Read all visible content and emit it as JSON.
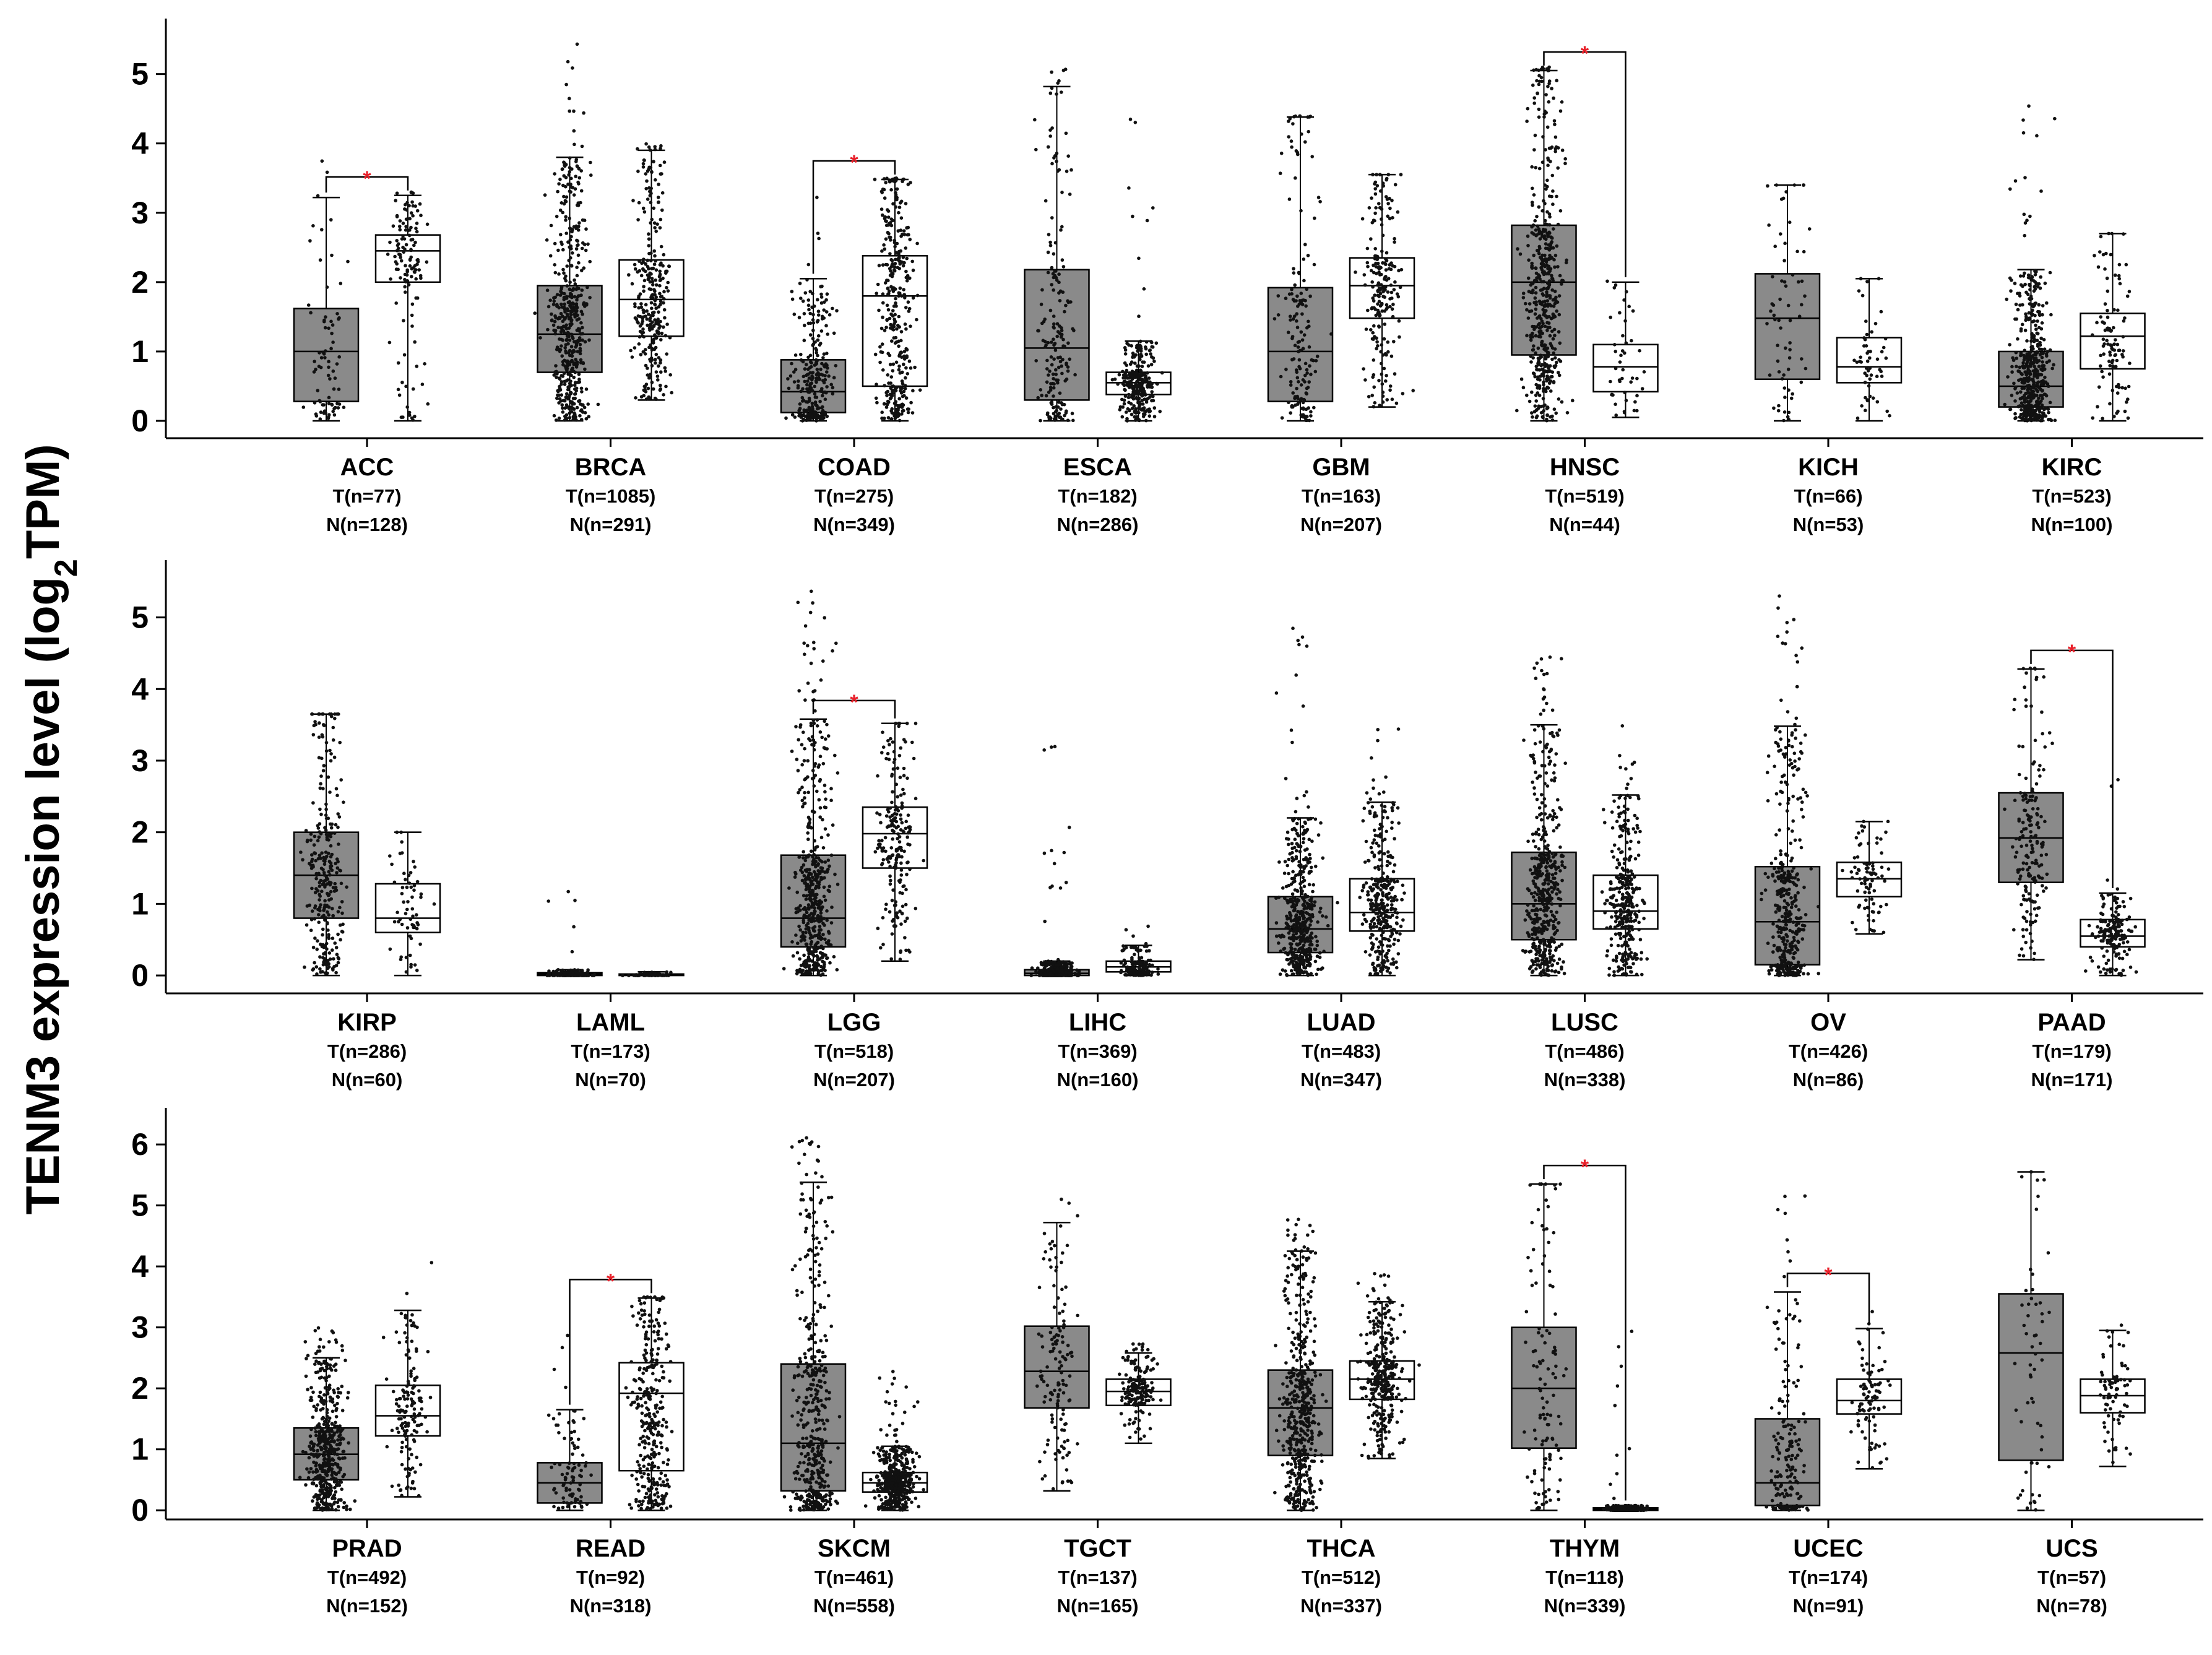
{
  "figure": {
    "ylabel_main": "TENM3 expression level (log",
    "ylabel_sub": "2",
    "ylabel_end": "TPM)"
  },
  "colors": {
    "tumor_box": "#8a8a8a",
    "normal_box": "#ffffff",
    "point": "#111111",
    "significance": "#e8202a",
    "axis": "#000000"
  },
  "chart_data": [
    {
      "type": "box",
      "panel": 1,
      "ylim": [
        -0.25,
        5.8
      ],
      "yticks": [
        "0",
        "1",
        "2",
        "3",
        "4",
        "5"
      ],
      "groups": [
        {
          "name": "ACC",
          "t_n": "T(n=77)",
          "n_n": "N(n=128)",
          "sig": true,
          "tumor": {
            "min": 0,
            "q1": 0.28,
            "median": 1.0,
            "q3": 1.62,
            "max": 3.22,
            "outliers_max": 4.0
          },
          "normal": {
            "min": 0,
            "q1": 2.0,
            "median": 2.45,
            "q3": 2.68,
            "max": 3.25,
            "outliers_max": 3.3
          }
        },
        {
          "name": "BRCA",
          "t_n": "T(n=1085)",
          "n_n": "N(n=291)",
          "sig": false,
          "tumor": {
            "min": 0,
            "q1": 0.7,
            "median": 1.25,
            "q3": 1.95,
            "max": 3.8,
            "outliers_max": 5.5
          },
          "normal": {
            "min": 0.3,
            "q1": 1.22,
            "median": 1.75,
            "q3": 2.32,
            "max": 3.9,
            "outliers_max": 4.0
          }
        },
        {
          "name": "COAD",
          "t_n": "T(n=275)",
          "n_n": "N(n=349)",
          "sig": true,
          "tumor": {
            "min": 0,
            "q1": 0.12,
            "median": 0.42,
            "q3": 0.88,
            "max": 2.05,
            "outliers_max": 3.3
          },
          "normal": {
            "min": 0,
            "q1": 0.5,
            "median": 1.8,
            "q3": 2.38,
            "max": 3.48,
            "outliers_max": 3.5
          }
        },
        {
          "name": "ESCA",
          "t_n": "T(n=182)",
          "n_n": "N(n=286)",
          "sig": false,
          "tumor": {
            "min": 0,
            "q1": 0.3,
            "median": 1.05,
            "q3": 2.18,
            "max": 4.82,
            "outliers_max": 5.35
          },
          "normal": {
            "min": 0,
            "q1": 0.38,
            "median": 0.55,
            "q3": 0.7,
            "max": 1.15,
            "outliers_max": 4.35
          }
        },
        {
          "name": "GBM",
          "t_n": "T(n=163)",
          "n_n": "N(n=207)",
          "sig": false,
          "tumor": {
            "min": 0,
            "q1": 0.28,
            "median": 1.0,
            "q3": 1.92,
            "max": 4.38,
            "outliers_max": 4.4
          },
          "normal": {
            "min": 0.2,
            "q1": 1.48,
            "median": 1.95,
            "q3": 2.35,
            "max": 3.55,
            "outliers_max": 3.55
          }
        },
        {
          "name": "HNSC",
          "t_n": "T(n=519)",
          "n_n": "N(n=44)",
          "sig": true,
          "tumor": {
            "min": 0,
            "q1": 0.95,
            "median": 2.0,
            "q3": 2.82,
            "max": 5.05,
            "outliers_max": 5.1
          },
          "normal": {
            "min": 0.05,
            "q1": 0.42,
            "median": 0.78,
            "q3": 1.1,
            "max": 2.0,
            "outliers_max": 2.2
          }
        },
        {
          "name": "KICH",
          "t_n": "T(n=66)",
          "n_n": "N(n=53)",
          "sig": false,
          "tumor": {
            "min": 0,
            "q1": 0.6,
            "median": 1.48,
            "q3": 2.12,
            "max": 3.4,
            "outliers_max": 3.4
          },
          "normal": {
            "min": 0,
            "q1": 0.55,
            "median": 0.78,
            "q3": 1.2,
            "max": 2.05,
            "outliers_max": 2.05
          }
        },
        {
          "name": "KIRC",
          "t_n": "T(n=523)",
          "n_n": "N(n=100)",
          "sig": false,
          "tumor": {
            "min": 0,
            "q1": 0.2,
            "median": 0.5,
            "q3": 1.0,
            "max": 2.18,
            "outliers_max": 4.6
          },
          "normal": {
            "min": 0,
            "q1": 0.75,
            "median": 1.22,
            "q3": 1.55,
            "max": 2.7,
            "outliers_max": 2.7
          }
        }
      ]
    },
    {
      "type": "box",
      "panel": 2,
      "ylim": [
        -0.25,
        5.8
      ],
      "yticks": [
        "0",
        "1",
        "2",
        "3",
        "4",
        "5"
      ],
      "groups": [
        {
          "name": "KIRP",
          "t_n": "T(n=286)",
          "n_n": "N(n=60)",
          "sig": false,
          "tumor": {
            "min": 0,
            "q1": 0.8,
            "median": 1.4,
            "q3": 2.0,
            "max": 3.65,
            "outliers_max": 3.65
          },
          "normal": {
            "min": 0,
            "q1": 0.6,
            "median": 0.8,
            "q3": 1.28,
            "max": 2.0,
            "outliers_max": 2.0
          }
        },
        {
          "name": "LAML",
          "t_n": "T(n=173)",
          "n_n": "N(n=70)",
          "sig": false,
          "tumor": {
            "min": 0,
            "q1": 0.0,
            "median": 0.02,
            "q3": 0.04,
            "max": 0.08,
            "outliers_max": 1.6
          },
          "normal": {
            "min": 0,
            "q1": 0.0,
            "median": 0.01,
            "q3": 0.02,
            "max": 0.05,
            "outliers_max": 0.3
          }
        },
        {
          "name": "LGG",
          "t_n": "T(n=518)",
          "n_n": "N(n=207)",
          "sig": true,
          "tumor": {
            "min": 0,
            "q1": 0.4,
            "median": 0.8,
            "q3": 1.68,
            "max": 3.58,
            "outliers_max": 5.4
          },
          "normal": {
            "min": 0.2,
            "q1": 1.5,
            "median": 1.98,
            "q3": 2.35,
            "max": 3.52,
            "outliers_max": 3.52
          }
        },
        {
          "name": "LIHC",
          "t_n": "T(n=369)",
          "n_n": "N(n=160)",
          "sig": false,
          "tumor": {
            "min": 0,
            "q1": 0.0,
            "median": 0.03,
            "q3": 0.08,
            "max": 0.2,
            "outliers_max": 3.65
          },
          "normal": {
            "min": 0,
            "q1": 0.05,
            "median": 0.12,
            "q3": 0.2,
            "max": 0.42,
            "outliers_max": 0.8
          }
        },
        {
          "name": "LUAD",
          "t_n": "T(n=483)",
          "n_n": "N(n=347)",
          "sig": false,
          "tumor": {
            "min": 0,
            "q1": 0.32,
            "median": 0.65,
            "q3": 1.1,
            "max": 2.2,
            "outliers_max": 4.95
          },
          "normal": {
            "min": 0,
            "q1": 0.62,
            "median": 0.88,
            "q3": 1.35,
            "max": 2.42,
            "outliers_max": 3.5
          }
        },
        {
          "name": "LUSC",
          "t_n": "T(n=486)",
          "n_n": "N(n=338)",
          "sig": false,
          "tumor": {
            "min": 0,
            "q1": 0.5,
            "median": 1.0,
            "q3": 1.72,
            "max": 3.5,
            "outliers_max": 4.45
          },
          "normal": {
            "min": 0,
            "q1": 0.65,
            "median": 0.9,
            "q3": 1.4,
            "max": 2.52,
            "outliers_max": 3.5
          }
        },
        {
          "name": "OV",
          "t_n": "T(n=426)",
          "n_n": "N(n=86)",
          "sig": false,
          "tumor": {
            "min": 0,
            "q1": 0.15,
            "median": 0.75,
            "q3": 1.52,
            "max": 3.48,
            "outliers_max": 5.3
          },
          "normal": {
            "min": 0.58,
            "q1": 1.1,
            "median": 1.35,
            "q3": 1.58,
            "max": 2.15,
            "outliers_max": 2.15
          }
        },
        {
          "name": "PAAD",
          "t_n": "T(n=179)",
          "n_n": "N(n=171)",
          "sig": true,
          "tumor": {
            "min": 0.22,
            "q1": 1.3,
            "median": 1.92,
            "q3": 2.55,
            "max": 4.28,
            "outliers_max": 4.3
          },
          "normal": {
            "min": 0,
            "q1": 0.4,
            "median": 0.55,
            "q3": 0.78,
            "max": 1.15,
            "outliers_max": 2.75
          }
        }
      ]
    },
    {
      "type": "box",
      "panel": 3,
      "ylim": [
        -0.15,
        6.6
      ],
      "yticks": [
        "0",
        "1",
        "2",
        "3",
        "4",
        "5",
        "6"
      ],
      "groups": [
        {
          "name": "PRAD",
          "t_n": "T(n=492)",
          "n_n": "N(n=152)",
          "sig": false,
          "tumor": {
            "min": 0,
            "q1": 0.5,
            "median": 0.92,
            "q3": 1.35,
            "max": 2.5,
            "outliers_max": 3.05
          },
          "normal": {
            "min": 0.22,
            "q1": 1.22,
            "median": 1.55,
            "q3": 2.05,
            "max": 3.28,
            "outliers_max": 4.15
          }
        },
        {
          "name": "READ",
          "t_n": "T(n=92)",
          "n_n": "N(n=318)",
          "sig": true,
          "tumor": {
            "min": 0,
            "q1": 0.12,
            "median": 0.45,
            "q3": 0.78,
            "max": 1.65,
            "outliers_max": 2.9
          },
          "normal": {
            "min": 0,
            "q1": 0.65,
            "median": 1.92,
            "q3": 2.42,
            "max": 3.48,
            "outliers_max": 3.5
          }
        },
        {
          "name": "SKCM",
          "t_n": "T(n=461)",
          "n_n": "N(n=558)",
          "sig": false,
          "tumor": {
            "min": 0,
            "q1": 0.32,
            "median": 1.1,
            "q3": 2.4,
            "max": 5.38,
            "outliers_max": 6.3
          },
          "normal": {
            "min": 0,
            "q1": 0.3,
            "median": 0.45,
            "q3": 0.62,
            "max": 1.05,
            "outliers_max": 2.3
          }
        },
        {
          "name": "TGCT",
          "t_n": "T(n=137)",
          "n_n": "N(n=165)",
          "sig": false,
          "tumor": {
            "min": 0.32,
            "q1": 1.68,
            "median": 2.28,
            "q3": 3.02,
            "max": 4.72,
            "outliers_max": 5.3
          },
          "normal": {
            "min": 1.1,
            "q1": 1.72,
            "median": 1.95,
            "q3": 2.15,
            "max": 2.58,
            "outliers_max": 2.75
          }
        },
        {
          "name": "THCA",
          "t_n": "T(n=512)",
          "n_n": "N(n=337)",
          "sig": false,
          "tumor": {
            "min": 0,
            "q1": 0.9,
            "median": 1.68,
            "q3": 2.3,
            "max": 4.25,
            "outliers_max": 4.85
          },
          "normal": {
            "min": 0.85,
            "q1": 1.82,
            "median": 2.15,
            "q3": 2.45,
            "max": 3.42,
            "outliers_max": 3.9
          }
        },
        {
          "name": "THYM",
          "t_n": "T(n=118)",
          "n_n": "N(n=339)",
          "sig": true,
          "tumor": {
            "min": 0,
            "q1": 1.02,
            "median": 2.0,
            "q3": 3.0,
            "max": 5.35,
            "outliers_max": 5.35
          },
          "normal": {
            "min": 0,
            "q1": 0.0,
            "median": 0.02,
            "q3": 0.04,
            "max": 0.08,
            "outliers_max": 2.95
          }
        },
        {
          "name": "UCEC",
          "t_n": "T(n=174)",
          "n_n": "N(n=91)",
          "sig": true,
          "tumor": {
            "min": 0,
            "q1": 0.08,
            "median": 0.45,
            "q3": 1.5,
            "max": 3.58,
            "outliers_max": 5.2
          },
          "normal": {
            "min": 0.68,
            "q1": 1.58,
            "median": 1.8,
            "q3": 2.15,
            "max": 2.98,
            "outliers_max": 3.35
          }
        },
        {
          "name": "UCS",
          "t_n": "T(n=57)",
          "n_n": "N(n=78)",
          "sig": false,
          "tumor": {
            "min": 0,
            "q1": 0.82,
            "median": 2.58,
            "q3": 3.55,
            "max": 5.55,
            "outliers_max": 5.55
          },
          "normal": {
            "min": 0.72,
            "q1": 1.6,
            "median": 1.88,
            "q3": 2.15,
            "max": 2.95,
            "outliers_max": 3.35
          }
        }
      ]
    }
  ]
}
